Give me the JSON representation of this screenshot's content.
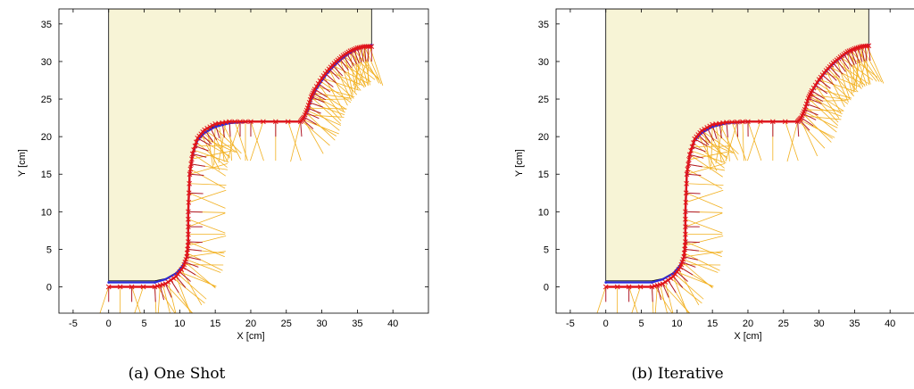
{
  "chart_data": [
    {
      "type": "line",
      "caption": "(a) One Shot",
      "xlabel": "X [cm]",
      "ylabel": "Y [cm]",
      "xlim": [
        -7,
        45
      ],
      "ylim": [
        -3.5,
        37
      ],
      "xticks": [
        -5,
        0,
        5,
        10,
        15,
        20,
        25,
        30,
        35,
        40
      ],
      "yticks": [
        0,
        5,
        10,
        15,
        20,
        25,
        30,
        35
      ],
      "region": {
        "x": [
          0,
          0,
          37,
          37,
          36,
          35,
          34,
          33,
          32,
          31,
          30,
          29,
          28.5,
          28,
          27.5,
          27,
          20,
          17,
          15,
          13.5,
          12.5,
          11.8,
          11.4,
          11.2,
          11.2,
          11,
          10.5,
          9.5,
          8,
          6.5,
          0
        ],
        "y": [
          0.8,
          37,
          37,
          32.2,
          32,
          31.7,
          31.2,
          30.5,
          29.7,
          28.7,
          27.5,
          26,
          25,
          23.5,
          22.5,
          22,
          22,
          21.8,
          21.5,
          20.6,
          19.5,
          17.5,
          15,
          10,
          6,
          4,
          3,
          1.9,
          1.1,
          0.8,
          0.8
        ]
      },
      "series": [
        {
          "values_x": [
            0,
            6.5,
            8,
            9.5,
            10.5,
            11,
            11.2,
            11.2,
            11.4,
            11.8,
            12.5,
            13.5,
            15,
            17,
            20,
            27,
            27.5,
            28,
            28.5,
            29,
            30,
            31,
            32,
            33,
            34,
            35,
            36,
            37
          ],
          "values_y": [
            0.6,
            0.6,
            1,
            1.8,
            2.9,
            4,
            6,
            10,
            15,
            17.5,
            19.5,
            20.5,
            21.3,
            21.8,
            22,
            22,
            22.5,
            23.5,
            25,
            26,
            27.5,
            28.7,
            29.7,
            30.5,
            31.2,
            31.7,
            32,
            32.2
          ]
        },
        {
          "values_x": [
            0,
            6.5,
            8,
            9.5,
            10.5,
            11,
            11.2,
            11.2,
            11.4,
            11.8,
            12.5,
            13.5,
            15,
            17,
            20,
            27,
            27.5,
            28,
            28.5,
            29,
            30,
            31,
            32,
            33,
            34,
            35,
            36,
            37
          ],
          "values_y": [
            0,
            0,
            0.4,
            1.4,
            2.6,
            4,
            6,
            10,
            15,
            17.7,
            19.8,
            20.9,
            21.7,
            22,
            22,
            22,
            22.6,
            23.8,
            25.3,
            26.3,
            27.8,
            29,
            30,
            30.8,
            31.4,
            31.8,
            32,
            32
          ]
        }
      ]
    },
    {
      "type": "line",
      "caption": "(b) Iterative",
      "xlabel": "X [cm]",
      "ylabel": "Y [cm]",
      "xlim": [
        -7,
        45
      ],
      "ylim": [
        -3.5,
        37
      ],
      "xticks": [
        -5,
        0,
        5,
        10,
        15,
        20,
        25,
        30,
        35,
        40
      ],
      "yticks": [
        0,
        5,
        10,
        15,
        20,
        25,
        30,
        35
      ],
      "region": {
        "x": [
          0,
          0,
          37,
          37,
          36,
          35,
          34,
          33,
          32,
          31,
          30,
          29,
          28.5,
          28,
          27.5,
          27,
          20,
          17,
          15,
          13.5,
          12.5,
          11.8,
          11.4,
          11.2,
          11.2,
          11,
          10.5,
          9.5,
          8,
          6.5,
          0
        ],
        "y": [
          0.8,
          37,
          37,
          32.2,
          32,
          31.7,
          31.2,
          30.5,
          29.7,
          28.7,
          27.5,
          26,
          25,
          23.5,
          22.5,
          22,
          22,
          21.8,
          21.5,
          20.6,
          19.5,
          17.5,
          15,
          10,
          6,
          4,
          3,
          1.9,
          1.1,
          0.8,
          0.8
        ]
      },
      "series": [
        {
          "values_x": [
            0,
            6.5,
            8,
            9.5,
            10.5,
            11,
            11.2,
            11.2,
            11.4,
            11.8,
            12.5,
            13.5,
            15,
            17,
            20,
            27,
            27.5,
            28,
            28.5,
            29,
            30,
            31,
            32,
            33,
            34,
            35,
            36,
            37
          ],
          "values_y": [
            0.6,
            0.6,
            1,
            1.8,
            2.9,
            4,
            6,
            10,
            15,
            17.5,
            19.5,
            20.5,
            21.3,
            21.8,
            22,
            22,
            22.5,
            23.5,
            25,
            26,
            27.5,
            28.7,
            29.7,
            30.5,
            31.2,
            31.7,
            32,
            32.2
          ]
        },
        {
          "values_x": [
            0,
            6.5,
            8,
            9.5,
            10.5,
            11,
            11.2,
            11.2,
            11.4,
            11.8,
            12.5,
            13.5,
            15,
            17,
            20,
            27,
            27.5,
            28,
            28.5,
            29,
            30,
            31,
            32,
            33,
            34,
            35,
            36,
            37
          ],
          "values_y": [
            0,
            0,
            0.4,
            1.4,
            2.6,
            4,
            6,
            10,
            15,
            17.6,
            19.7,
            20.8,
            21.6,
            21.9,
            22,
            22,
            22.5,
            23.6,
            25.1,
            26.1,
            27.6,
            28.8,
            29.8,
            30.6,
            31.3,
            31.7,
            32,
            32.1
          ]
        }
      ]
    }
  ],
  "colors": {
    "region_fill": "#f7f4d6",
    "region_stroke": "#000000",
    "target_line": "#2b2bd9",
    "robot_line": "#e0151b",
    "sensor_rays": "#f2b01f",
    "normal_ticks": "#b01a2a"
  }
}
